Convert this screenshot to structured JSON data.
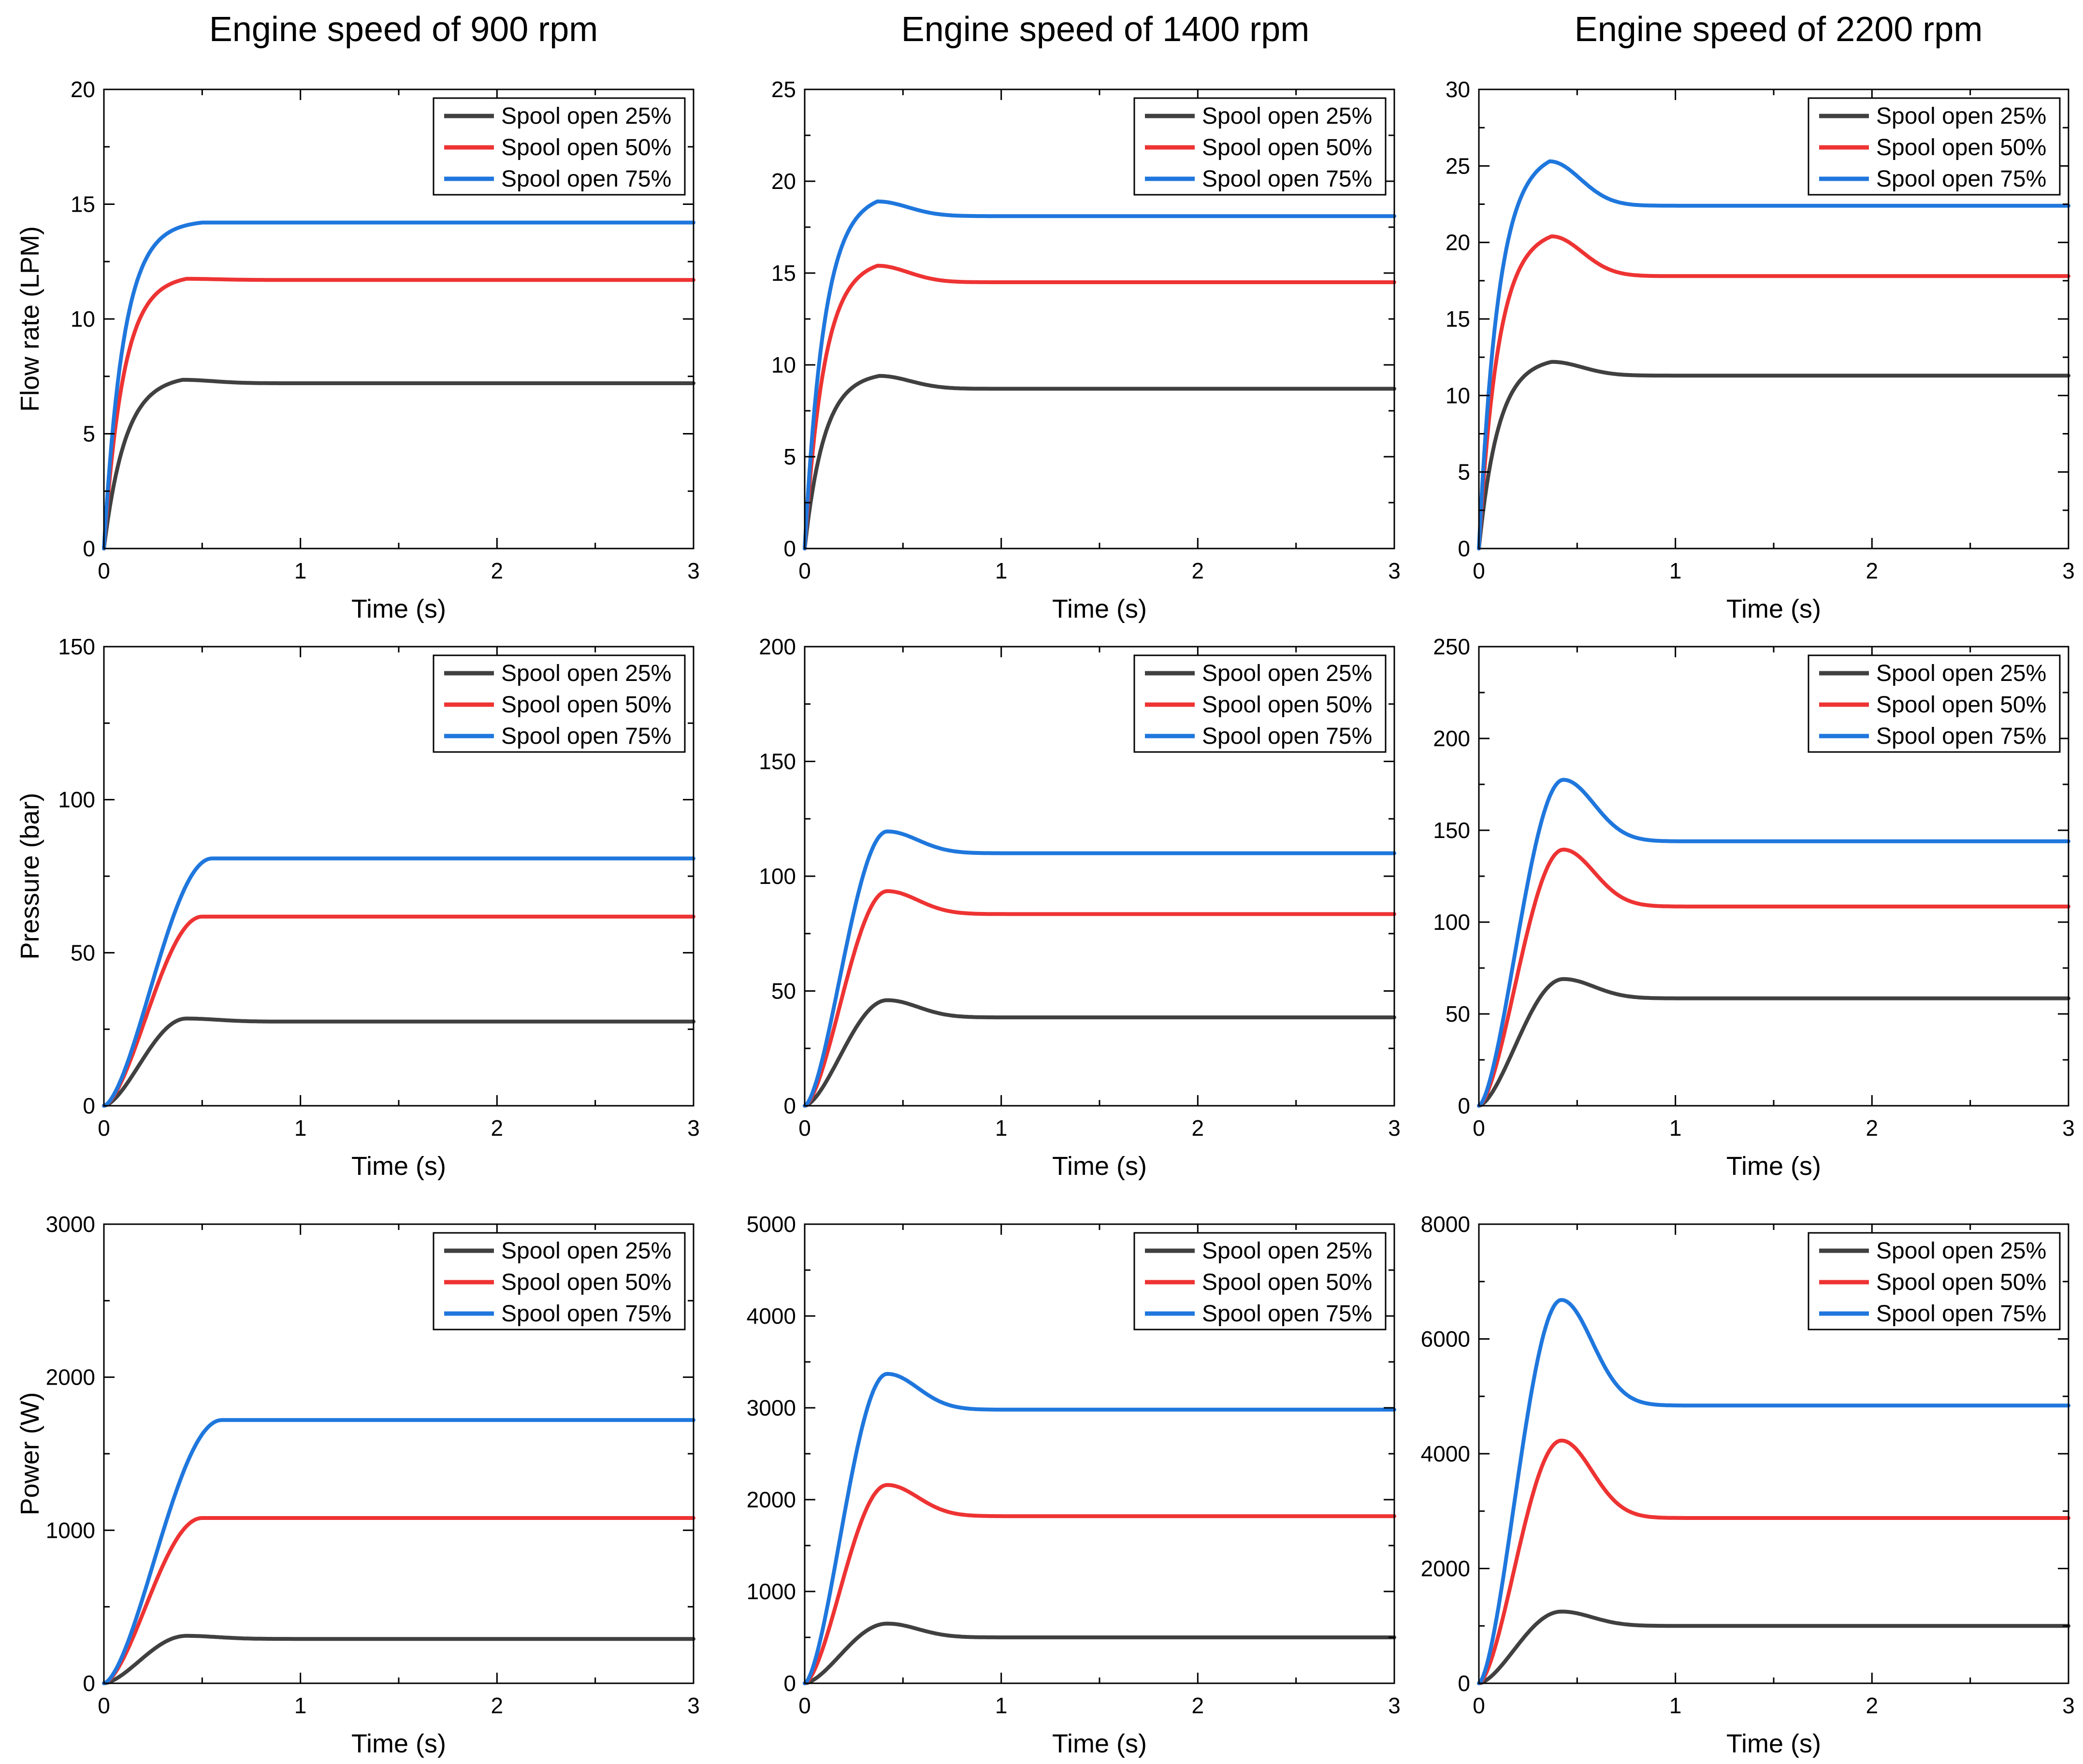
{
  "column_titles": [
    "Engine speed of 900 rpm",
    "Engine speed of 1400 rpm",
    "Engine speed of 2200 rpm"
  ],
  "colors": {
    "s25": "#404040",
    "s50": "#ee3333",
    "s75": "#1f77dd"
  },
  "chart_data": [
    {
      "type": "line",
      "title": "Engine speed of 900 rpm",
      "xlabel": "Time (s)",
      "ylabel": "Flow rate (LPM)",
      "xlim": [
        0,
        3
      ],
      "ylim": [
        0,
        20
      ],
      "xticks": [
        0,
        1,
        2,
        3
      ],
      "yticks": [
        0,
        5,
        10,
        15,
        20
      ],
      "legend": "top-right",
      "series": [
        {
          "name": "Spool open 25%",
          "color": "#404040",
          "final": 7.2,
          "peak": 7.35,
          "peak_t": 0.4,
          "tau": 0.11
        },
        {
          "name": "Spool open 50%",
          "color": "#ee3333",
          "final": 11.7,
          "peak": 11.75,
          "peak_t": 0.42,
          "tau": 0.1
        },
        {
          "name": "Spool open 75%",
          "color": "#1f77dd",
          "final": 14.2,
          "peak": 14.2,
          "peak_t": 0.5,
          "tau": 0.1
        }
      ]
    },
    {
      "type": "line",
      "title": "Engine speed of 1400 rpm",
      "xlabel": "Time (s)",
      "ylabel": "",
      "xlim": [
        0,
        3
      ],
      "ylim": [
        0,
        25
      ],
      "xticks": [
        0,
        1,
        2,
        3
      ],
      "yticks": [
        0,
        5,
        10,
        15,
        20,
        25
      ],
      "legend": "top-right",
      "series": [
        {
          "name": "Spool open 25%",
          "color": "#404040",
          "final": 8.7,
          "peak": 9.4,
          "peak_t": 0.38,
          "tau": 0.1
        },
        {
          "name": "Spool open 50%",
          "color": "#ee3333",
          "final": 14.5,
          "peak": 15.4,
          "peak_t": 0.37,
          "tau": 0.1
        },
        {
          "name": "Spool open 75%",
          "color": "#1f77dd",
          "final": 18.1,
          "peak": 18.9,
          "peak_t": 0.37,
          "tau": 0.1
        }
      ]
    },
    {
      "type": "line",
      "title": "Engine speed of 2200 rpm",
      "xlabel": "Time (s)",
      "ylabel": "",
      "xlim": [
        0,
        3
      ],
      "ylim": [
        0,
        30
      ],
      "xticks": [
        0,
        1,
        2,
        3
      ],
      "yticks": [
        0,
        5,
        10,
        15,
        20,
        25,
        30
      ],
      "legend": "top-right",
      "series": [
        {
          "name": "Spool open 25%",
          "color": "#404040",
          "final": 11.3,
          "peak": 12.2,
          "peak_t": 0.37,
          "tau": 0.1
        },
        {
          "name": "Spool open 50%",
          "color": "#ee3333",
          "final": 17.8,
          "peak": 20.4,
          "peak_t": 0.37,
          "tau": 0.1
        },
        {
          "name": "Spool open 75%",
          "color": "#1f77dd",
          "final": 22.4,
          "peak": 25.3,
          "peak_t": 0.36,
          "tau": 0.1
        }
      ]
    },
    {
      "type": "line",
      "title": "",
      "xlabel": "Time (s)",
      "ylabel": "Pressure (bar)",
      "xlim": [
        0,
        3
      ],
      "ylim": [
        0,
        150
      ],
      "xticks": [
        0,
        1,
        2,
        3
      ],
      "yticks": [
        0,
        50,
        100,
        150
      ],
      "legend": "top-right",
      "series": [
        {
          "name": "Spool open 25%",
          "color": "#404040",
          "final": 27.5,
          "peak": 28.5,
          "peak_t": 0.42,
          "tau": 0.13,
          "sig": true
        },
        {
          "name": "Spool open 50%",
          "color": "#ee3333",
          "final": 61.8,
          "peak": 61.8,
          "peak_t": 0.5,
          "tau": 0.12,
          "sig": true
        },
        {
          "name": "Spool open 75%",
          "color": "#1f77dd",
          "final": 80.8,
          "peak": 80.8,
          "peak_t": 0.55,
          "tau": 0.12,
          "sig": true
        }
      ]
    },
    {
      "type": "line",
      "title": "",
      "xlabel": "Time (s)",
      "ylabel": "",
      "xlim": [
        0,
        3
      ],
      "ylim": [
        0,
        200
      ],
      "xticks": [
        0,
        1,
        2,
        3
      ],
      "yticks": [
        0,
        50,
        100,
        150,
        200
      ],
      "legend": "top-right",
      "series": [
        {
          "name": "Spool open 25%",
          "color": "#404040",
          "final": 38.5,
          "peak": 46,
          "peak_t": 0.42,
          "tau": 0.12,
          "sig": true
        },
        {
          "name": "Spool open 50%",
          "color": "#ee3333",
          "final": 83.5,
          "peak": 93.5,
          "peak_t": 0.42,
          "tau": 0.12,
          "sig": true
        },
        {
          "name": "Spool open 75%",
          "color": "#1f77dd",
          "final": 110,
          "peak": 119.5,
          "peak_t": 0.42,
          "tau": 0.12,
          "sig": true
        }
      ]
    },
    {
      "type": "line",
      "title": "",
      "xlabel": "Time (s)",
      "ylabel": "",
      "xlim": [
        0,
        3
      ],
      "ylim": [
        0,
        250
      ],
      "xticks": [
        0,
        1,
        2,
        3
      ],
      "yticks": [
        0,
        50,
        100,
        150,
        200,
        250
      ],
      "legend": "top-right",
      "series": [
        {
          "name": "Spool open 25%",
          "color": "#404040",
          "final": 58.5,
          "peak": 69,
          "peak_t": 0.43,
          "tau": 0.12,
          "sig": true
        },
        {
          "name": "Spool open 50%",
          "color": "#ee3333",
          "final": 108.5,
          "peak": 139.5,
          "peak_t": 0.43,
          "tau": 0.12,
          "sig": true
        },
        {
          "name": "Spool open 75%",
          "color": "#1f77dd",
          "final": 144,
          "peak": 177.5,
          "peak_t": 0.43,
          "tau": 0.12,
          "sig": true
        }
      ]
    },
    {
      "type": "line",
      "title": "",
      "xlabel": "Time (s)",
      "ylabel": "Power (W)",
      "xlim": [
        0,
        3
      ],
      "ylim": [
        0,
        3000
      ],
      "xticks": [
        0,
        1,
        2,
        3
      ],
      "yticks": [
        0,
        1000,
        2000,
        3000
      ],
      "legend": "top-right",
      "series": [
        {
          "name": "Spool open 25%",
          "color": "#404040",
          "final": 290,
          "peak": 310,
          "peak_t": 0.42,
          "tau": 0.13,
          "sig": true
        },
        {
          "name": "Spool open 50%",
          "color": "#ee3333",
          "final": 1080,
          "peak": 1080,
          "peak_t": 0.5,
          "tau": 0.12,
          "sig": true
        },
        {
          "name": "Spool open 75%",
          "color": "#1f77dd",
          "final": 1720,
          "peak": 1720,
          "peak_t": 0.6,
          "tau": 0.12,
          "sig": true
        }
      ]
    },
    {
      "type": "line",
      "title": "",
      "xlabel": "Time (s)",
      "ylabel": "",
      "xlim": [
        0,
        3
      ],
      "ylim": [
        0,
        5000
      ],
      "xticks": [
        0,
        1,
        2,
        3
      ],
      "yticks": [
        0,
        1000,
        2000,
        3000,
        4000,
        5000
      ],
      "legend": "top-right",
      "series": [
        {
          "name": "Spool open 25%",
          "color": "#404040",
          "final": 500,
          "peak": 650,
          "peak_t": 0.42,
          "tau": 0.12,
          "sig": true
        },
        {
          "name": "Spool open 50%",
          "color": "#ee3333",
          "final": 1820,
          "peak": 2160,
          "peak_t": 0.42,
          "tau": 0.12,
          "sig": true
        },
        {
          "name": "Spool open 75%",
          "color": "#1f77dd",
          "final": 2980,
          "peak": 3370,
          "peak_t": 0.42,
          "tau": 0.12,
          "sig": true
        }
      ]
    },
    {
      "type": "line",
      "title": "",
      "xlabel": "Time (s)",
      "ylabel": "",
      "xlim": [
        0,
        3
      ],
      "ylim": [
        0,
        8000
      ],
      "xticks": [
        0,
        1,
        2,
        3
      ],
      "yticks": [
        0,
        2000,
        4000,
        6000,
        8000
      ],
      "legend": "top-right",
      "series": [
        {
          "name": "Spool open 25%",
          "color": "#404040",
          "final": 1000,
          "peak": 1250,
          "peak_t": 0.42,
          "tau": 0.12,
          "sig": true
        },
        {
          "name": "Spool open 50%",
          "color": "#ee3333",
          "final": 2880,
          "peak": 4230,
          "peak_t": 0.42,
          "tau": 0.12,
          "sig": true
        },
        {
          "name": "Spool open 75%",
          "color": "#1f77dd",
          "final": 4840,
          "peak": 6680,
          "peak_t": 0.42,
          "tau": 0.12,
          "sig": true
        }
      ]
    }
  ]
}
